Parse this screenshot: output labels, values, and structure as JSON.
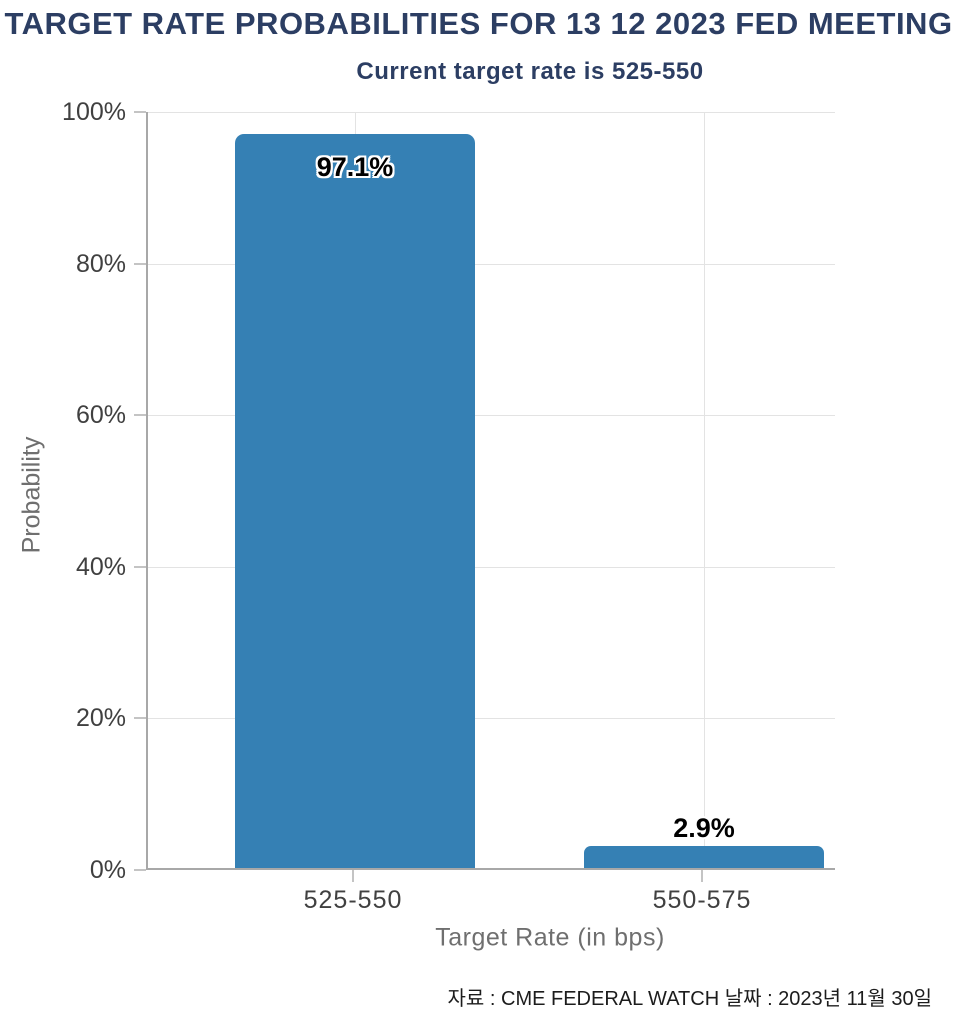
{
  "title": "TARGET RATE PROBABILITIES FOR 13 12 2023 FED MEETING",
  "subtitle": "Current target rate is 525-550",
  "source_note": "자료 : CME FEDERAL WATCH 날짜 : 2023년 11월 30일",
  "colors": {
    "bar": "#3580b4",
    "title_text": "#2c3e63",
    "axis_line": "#a8a8a8",
    "gridline": "#e3e3e3",
    "tick_mark": "#c4c4c4",
    "tick_label": "#404040",
    "axis_title": "#6f6f6f"
  },
  "chart_data": {
    "type": "bar",
    "title": "TARGET RATE PROBABILITIES FOR 13 12 2023 FED MEETING",
    "subtitle": "Current target rate is 525-550",
    "categories": [
      "525-550",
      "550-575"
    ],
    "values": [
      97.1,
      2.9
    ],
    "value_labels": [
      "97.1%",
      "2.9%"
    ],
    "xlabel": "Target Rate (in bps)",
    "ylabel": "Probability",
    "ylim": [
      0,
      100
    ],
    "y_ticks": [
      "0%",
      "20%",
      "40%",
      "60%",
      "80%",
      "100%"
    ],
    "grid": true,
    "legend": false,
    "bar_color": "#3580b4"
  }
}
